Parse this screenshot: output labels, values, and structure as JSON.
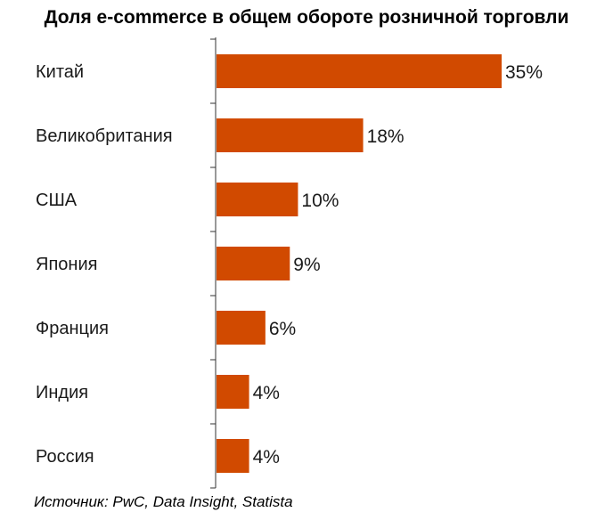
{
  "chart_data": {
    "type": "bar",
    "orientation": "horizontal",
    "title": "Доля e-commerce в общем обороте розничной торговли",
    "categories": [
      "Китай",
      "Великобритания",
      "США",
      "Япония",
      "Франция",
      "Индия",
      "Россия"
    ],
    "values": [
      35,
      18,
      10,
      9,
      6,
      4,
      4
    ],
    "value_labels": [
      "35%",
      "18%",
      "10%",
      "9%",
      "6%",
      "4%",
      "4%"
    ],
    "xlabel": "",
    "ylabel": "",
    "xlim": [
      0,
      35
    ],
    "grid": false,
    "bar_color": "#d14a00"
  },
  "source": "Источник: PwC, Data Insight, Statista"
}
